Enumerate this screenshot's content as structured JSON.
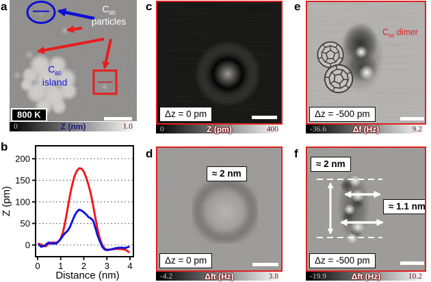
{
  "panels": {
    "a": {
      "label": "a",
      "temperature": "800 K",
      "particles_label": {
        "symbol": "C",
        "subscript": "60",
        "text": "particles"
      },
      "island_label": {
        "symbol": "C",
        "subscript": "60",
        "text": "island"
      },
      "colorbar": {
        "min": "0",
        "label": "Z (nm)",
        "max": "1.0"
      }
    },
    "b": {
      "label": "b"
    },
    "c": {
      "label": "c",
      "offset_label": "Δz = 0 pm",
      "colorbar": {
        "min": "0",
        "label": "Z (pm)",
        "max": "400"
      }
    },
    "d": {
      "label": "d",
      "offset_label": "Δz = 0 pm",
      "size_label": "≈ 2 nm",
      "colorbar": {
        "min": "-4.2",
        "label": "Δft (Hz)",
        "max": "3.8"
      }
    },
    "e": {
      "label": "e",
      "offset_label": "Δz = -500 pm",
      "dimer_label": {
        "symbol": "C",
        "subscript": "60",
        "text": "dimer"
      },
      "colorbar": {
        "min": "-36.6",
        "label": "Δf (Hz)",
        "max": "9.2"
      }
    },
    "f": {
      "label": "f",
      "offset_label": "Δz = -500 pm",
      "height_label": "≈ 2 nm",
      "width_label": "≈ 1.1 nm",
      "colorbar": {
        "min": "-19.9",
        "label": "Δft (Hz)",
        "max": "10.2"
      }
    }
  },
  "chart_data": {
    "type": "line",
    "title": "",
    "xlabel": "Distance (nm)",
    "ylabel": "Z (pm)",
    "xlim": [
      -0.09,
      4.15
    ],
    "ylim": [
      -27,
      230
    ],
    "xticks": [
      0,
      1,
      2,
      3,
      4
    ],
    "yticks": [
      0,
      50,
      100,
      150,
      200
    ],
    "grid": "dotted horizontal lines at yticks",
    "legend": "none",
    "series": [
      {
        "name": "island-profile-red",
        "color": "#ee1b1b",
        "x": [
          0.05,
          0.2,
          0.35,
          0.5,
          0.65,
          0.8,
          0.9,
          1.0,
          1.1,
          1.2,
          1.3,
          1.4,
          1.5,
          1.6,
          1.7,
          1.8,
          1.9,
          2.0,
          2.1,
          2.2,
          2.3,
          2.4,
          2.5,
          2.6,
          2.7,
          2.8,
          2.9,
          3.0,
          3.2,
          3.4,
          3.6,
          3.8,
          3.95
        ],
        "y": [
          3,
          0,
          -3,
          4,
          6,
          5,
          8,
          15,
          30,
          55,
          85,
          115,
          140,
          160,
          172,
          178,
          177,
          170,
          157,
          140,
          120,
          93,
          63,
          36,
          14,
          0,
          -8,
          -11,
          -10,
          -9,
          -9,
          -11,
          -16
        ]
      },
      {
        "name": "particle-profile-blue",
        "color": "#1414dd",
        "x": [
          0.05,
          0.15,
          0.3,
          0.4,
          0.5,
          0.6,
          0.7,
          0.8,
          0.9,
          1.0,
          1.1,
          1.2,
          1.3,
          1.4,
          1.5,
          1.6,
          1.7,
          1.8,
          1.9,
          2.0,
          2.1,
          2.2,
          2.3,
          2.4,
          2.5,
          2.6,
          2.7,
          2.8,
          2.9,
          3.0,
          3.2,
          3.4,
          3.6,
          3.8,
          3.95
        ],
        "y": [
          1,
          -4,
          -2,
          3,
          6,
          3,
          4,
          3,
          8,
          14,
          22,
          28,
          33,
          42,
          55,
          68,
          77,
          82,
          80,
          76,
          71,
          65,
          62,
          57,
          40,
          22,
          8,
          -4,
          -10,
          -12,
          -10,
          -7,
          -6,
          -7,
          -4
        ]
      }
    ]
  }
}
